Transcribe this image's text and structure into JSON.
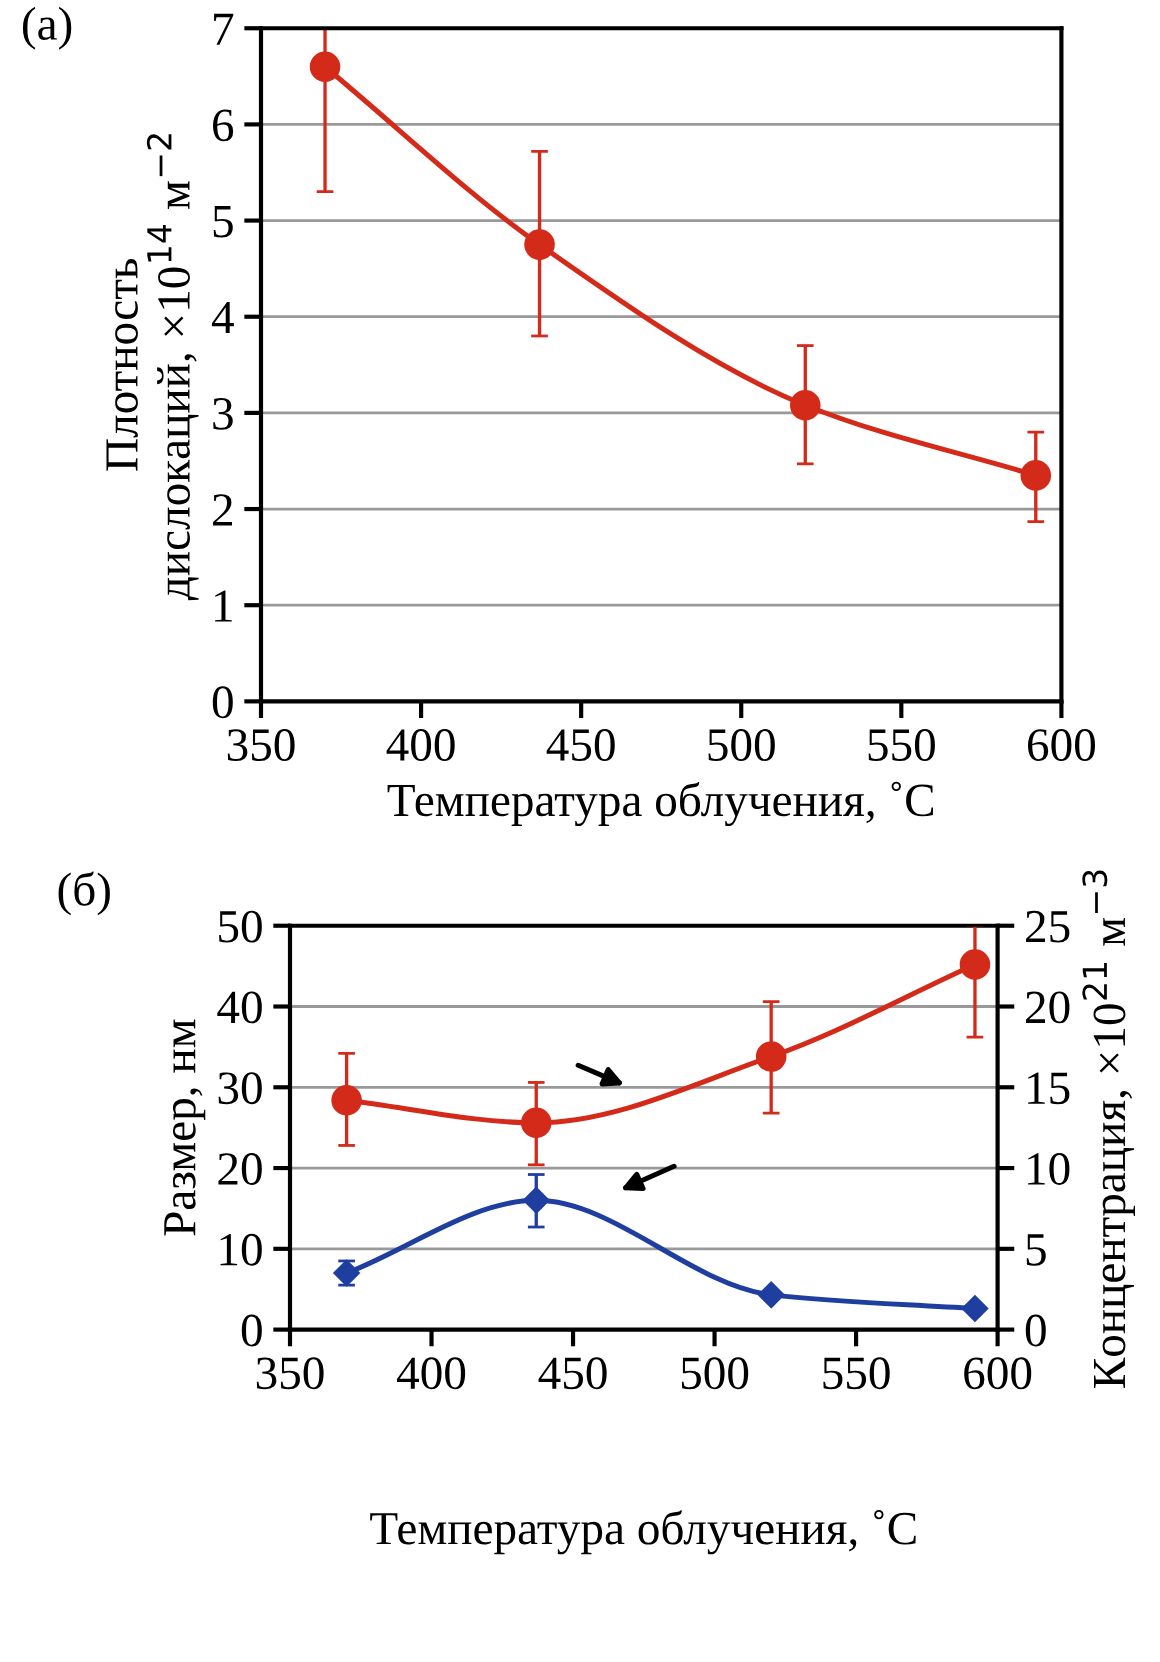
{
  "chart_data": [
    {
      "type": "line",
      "annotations": [
        "(а)"
      ],
      "xlabel": "Температура облучения, ˚C",
      "ylabel": "Плотность\nдислокаций, ×10$^{14}$ м$^{−2}$",
      "x": [
        370,
        437,
        520,
        592
      ],
      "series": [
        {
          "color": "#d42a1a",
          "values": [
            6.6,
            4.75,
            3.08,
            2.35
          ],
          "errors": [
            [
              5.3,
              7.0
            ],
            [
              3.8,
              5.72
            ],
            [
              2.47,
              3.7
            ],
            [
              1.87,
              2.8
            ]
          ]
        }
      ],
      "xlim": [
        350,
        600
      ],
      "xticks": [
        350,
        400,
        450,
        500,
        550,
        600
      ],
      "ylim": [
        0,
        7
      ],
      "yticks": [
        0,
        1,
        2,
        3,
        4,
        5,
        6,
        7
      ],
      "grid": "y",
      "marker": "circle",
      "line_style": "solid"
    },
    {
      "type": "line",
      "annotations": [
        "(б)"
      ],
      "xlabel": "Температура облучения, ˚C",
      "ylabel": "Размер, нм",
      "y2label": "Концентрация, ×10$^{21}$ м$^{−3}$",
      "x": [
        370,
        437,
        520,
        592
      ],
      "series": [
        {
          "color": "#d42a1a",
          "axis": "y2",
          "marker": "circle",
          "values": [
            14.2,
            12.8,
            16.9,
            22.6
          ],
          "errors": [
            [
              11.4,
              17.1
            ],
            [
              10.2,
              15.3
            ],
            [
              13.4,
              20.3
            ],
            [
              18.1,
              25
            ]
          ]
        },
        {
          "color": "#1f3fa0",
          "axis": "y",
          "marker": "diamond",
          "values": [
            7,
            16,
            4.3,
            2.6
          ],
          "errors": [
            [
              5.5,
              8.5
            ],
            [
              12.7,
              19.2
            ],
            null,
            null
          ]
        }
      ],
      "xlim": [
        350,
        600
      ],
      "xticks": [
        350,
        400,
        450,
        500,
        550,
        600
      ],
      "ylim": [
        0,
        50
      ],
      "yticks": [
        0,
        10,
        20,
        30,
        40,
        50
      ],
      "y2lim": [
        0,
        25
      ],
      "y2ticks": [
        0,
        5,
        10,
        15,
        20,
        25
      ],
      "grid": "y",
      "line_style": "solid"
    }
  ]
}
